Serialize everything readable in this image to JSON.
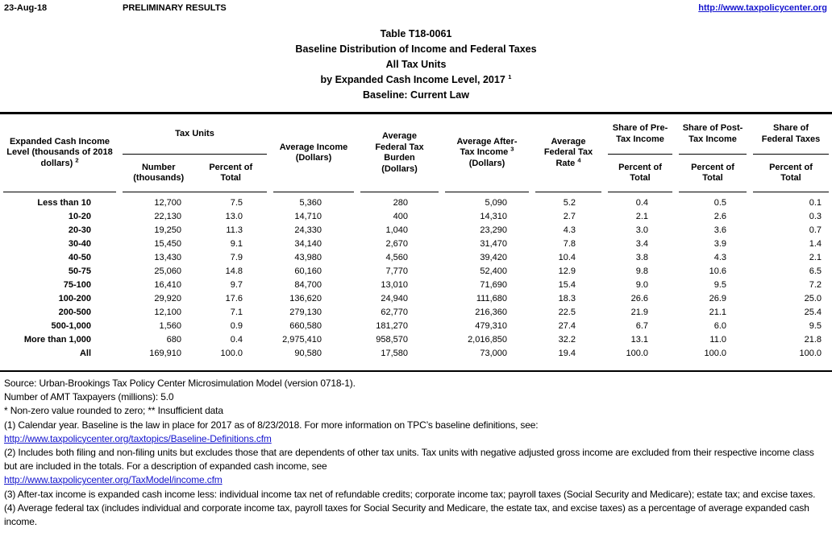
{
  "header_bar": {
    "date": "23-Aug-18",
    "status": "PRELIMINARY RESULTS",
    "site_url": "http://www.taxpolicycenter.org"
  },
  "title_block": {
    "line1": "Table T18-0061",
    "line2": "Baseline Distribution of Income and Federal Taxes",
    "line3": "All Tax Units",
    "line4": "by Expanded Cash Income Level, 2017",
    "line4_sup": "1",
    "line5": "Baseline: Current Law"
  },
  "table": {
    "header": {
      "income_level": "Expanded Cash Income Level (thousands of 2018 dollars)",
      "income_level_sup": "2",
      "tax_units_group": "Tax Units",
      "number_sub": "Number (thousands)",
      "percent_sub": "Percent of Total",
      "avg_income_l1": "Average Income",
      "avg_income_l2": "(Dollars)",
      "avg_burden_l1": "Average Federal Tax Burden",
      "avg_burden_l2": "(Dollars)",
      "after_tax_l1": "Average After-Tax Income",
      "after_tax_sup": "3",
      "after_tax_l2": "(Dollars)",
      "avg_rate": "Average Federal Tax Rate",
      "avg_rate_sup": "4",
      "share_pre": "Share of Pre-Tax Income",
      "share_post": "Share of Post-Tax Income",
      "share_fed": "Share of Federal Taxes",
      "percent_of_total": "Percent of Total"
    },
    "rows": [
      {
        "label": "Less than 10",
        "values": [
          "12,700",
          "7.5",
          "5,360",
          "280",
          "5,090",
          "5.2",
          "0.4",
          "0.5",
          "0.1"
        ]
      },
      {
        "label": "10-20",
        "values": [
          "22,130",
          "13.0",
          "14,710",
          "400",
          "14,310",
          "2.7",
          "2.1",
          "2.6",
          "0.3"
        ]
      },
      {
        "label": "20-30",
        "values": [
          "19,250",
          "11.3",
          "24,330",
          "1,040",
          "23,290",
          "4.3",
          "3.0",
          "3.6",
          "0.7"
        ]
      },
      {
        "label": "30-40",
        "values": [
          "15,450",
          "9.1",
          "34,140",
          "2,670",
          "31,470",
          "7.8",
          "3.4",
          "3.9",
          "1.4"
        ]
      },
      {
        "label": "40-50",
        "values": [
          "13,430",
          "7.9",
          "43,980",
          "4,560",
          "39,420",
          "10.4",
          "3.8",
          "4.3",
          "2.1"
        ]
      },
      {
        "label": "50-75",
        "values": [
          "25,060",
          "14.8",
          "60,160",
          "7,770",
          "52,400",
          "12.9",
          "9.8",
          "10.6",
          "6.5"
        ]
      },
      {
        "label": "75-100",
        "values": [
          "16,410",
          "9.7",
          "84,700",
          "13,010",
          "71,690",
          "15.4",
          "9.0",
          "9.5",
          "7.2"
        ]
      },
      {
        "label": "100-200",
        "values": [
          "29,920",
          "17.6",
          "136,620",
          "24,940",
          "111,680",
          "18.3",
          "26.6",
          "26.9",
          "25.0"
        ]
      },
      {
        "label": "200-500",
        "values": [
          "12,100",
          "7.1",
          "279,130",
          "62,770",
          "216,360",
          "22.5",
          "21.9",
          "21.1",
          "25.4"
        ]
      },
      {
        "label": "500-1,000",
        "values": [
          "1,560",
          "0.9",
          "660,580",
          "181,270",
          "479,310",
          "27.4",
          "6.7",
          "6.0",
          "9.5"
        ]
      },
      {
        "label": "More than 1,000",
        "values": [
          "680",
          "0.4",
          "2,975,410",
          "958,570",
          "2,016,850",
          "32.2",
          "13.1",
          "11.0",
          "21.8"
        ]
      },
      {
        "label": "All",
        "values": [
          "169,910",
          "100.0",
          "90,580",
          "17,580",
          "73,000",
          "19.4",
          "100.0",
          "100.0",
          "100.0"
        ]
      }
    ]
  },
  "footnotes": {
    "source": "Source: Urban-Brookings Tax Policy Center Microsimulation Model (version 0718-1).",
    "amt": "Number of AMT Taxpayers (millions): 5.0",
    "asterisks": "* Non-zero value rounded to zero; ** Insufficient data",
    "note1": "(1) Calendar year. Baseline is the law in place for 2017 as of 8/23/2018. For more information on TPC’s baseline definitions, see:",
    "link1": "http://www.taxpolicycenter.org/taxtopics/Baseline-Definitions.cfm",
    "note2": "(2) Includes both filing and non-filing units but excludes those that are dependents of other tax units. Tax units with negative adjusted gross income are excluded from their respective income class but are included in the totals. For a description of expanded cash income, see",
    "link2": "http://www.taxpolicycenter.org/TaxModel/income.cfm",
    "note3": "(3) After-tax income is expanded cash income less: individual income tax net of refundable credits; corporate income tax; payroll taxes (Social Security and Medicare); estate tax; and excise taxes.",
    "note4": "(4) Average federal tax (includes individual and corporate income tax, payroll taxes for Social Security and Medicare, the estate tax, and excise taxes) as a percentage of average expanded cash income."
  },
  "colors": {
    "link": "#1515CE",
    "text": "#000000",
    "rule": "#000000"
  }
}
